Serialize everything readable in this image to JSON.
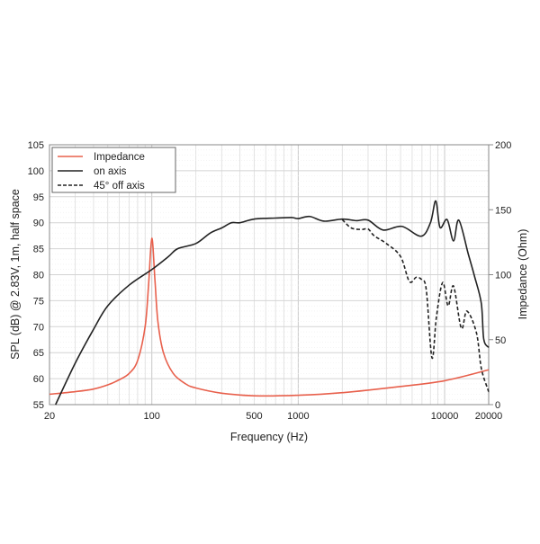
{
  "chart_data": {
    "type": "line",
    "xlabel": "Frequency (Hz)",
    "ylabel": "SPL (dB) @ 2.83V, 1m, half space",
    "y2label": "Impedance (Ohm)",
    "xscale": "log",
    "xlim": [
      20,
      20000
    ],
    "ylim": [
      55,
      105
    ],
    "y2lim": [
      0,
      200
    ],
    "xticks": [
      20,
      100,
      500,
      1000,
      10000,
      20000
    ],
    "yticks": [
      55,
      60,
      65,
      70,
      75,
      80,
      85,
      90,
      95,
      100,
      105
    ],
    "y2ticks": [
      0,
      50,
      100,
      150,
      200
    ],
    "grid": true,
    "legend_position": "top-left",
    "series": [
      {
        "name": "Impedance",
        "axis": "right",
        "color": "#e8604c",
        "style": "solid",
        "x": [
          20,
          30,
          40,
          50,
          60,
          70,
          80,
          90,
          95,
          100,
          105,
          110,
          120,
          140,
          170,
          200,
          300,
          500,
          1000,
          2000,
          5000,
          10000,
          20000
        ],
        "y": [
          8,
          10,
          12,
          15.2,
          19.2,
          24,
          34,
          60,
          92,
          128,
          96,
          64,
          40,
          24,
          16,
          12.8,
          8.8,
          6.8,
          7.2,
          9.2,
          14,
          18.4,
          26.8
        ]
      },
      {
        "name": "on axis",
        "axis": "left",
        "color": "#222222",
        "style": "solid",
        "x": [
          22,
          30,
          40,
          50,
          70,
          100,
          130,
          150,
          200,
          250,
          300,
          350,
          400,
          500,
          700,
          900,
          1000,
          1200,
          1500,
          2000,
          2500,
          3000,
          3800,
          5100,
          6900,
          8000,
          8700,
          9300,
          10400,
          11500,
          12500,
          14500,
          16000,
          17800,
          18500,
          20000
        ],
        "y": [
          55,
          63,
          69.5,
          74,
          78,
          81,
          83.5,
          85,
          86,
          88,
          89,
          90,
          90,
          90.7,
          90.9,
          91,
          90.8,
          91.2,
          90.3,
          90.7,
          90.4,
          90.5,
          88.6,
          89.3,
          87.4,
          90,
          94.2,
          89.1,
          90.6,
          86.5,
          90.5,
          84,
          79.7,
          74.5,
          67.6,
          66
        ]
      },
      {
        "name": "45° off axis",
        "axis": "left",
        "color": "#222222",
        "style": "dashed",
        "x": [
          2000,
          2300,
          2700,
          3000,
          3300,
          4000,
          5000,
          5740,
          6400,
          7000,
          7500,
          8200,
          8800,
          9700,
          10570,
          11500,
          13000,
          14200,
          16500,
          17800,
          19700,
          20000
        ],
        "y": [
          90.6,
          89,
          88.7,
          88.8,
          87.5,
          86,
          83.5,
          78.7,
          79.5,
          79,
          77,
          64,
          72,
          78.5,
          74,
          77.8,
          69.7,
          73,
          68.8,
          62,
          58,
          57.5
        ]
      }
    ]
  }
}
